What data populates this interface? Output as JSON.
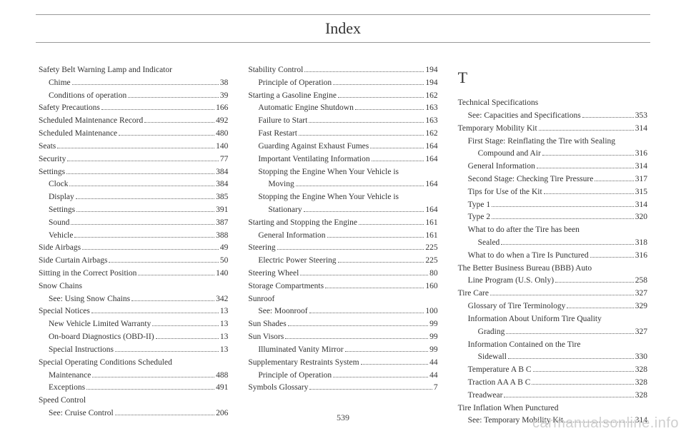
{
  "title": "Index",
  "pageNumber": "539",
  "watermark": "carmanualsonline.info",
  "sectionLetter": "T",
  "col1": [
    {
      "t": "main",
      "label": "Safety Belt Warning Lamp and Indicator",
      "page": ""
    },
    {
      "t": "sub",
      "label": "Chime",
      "page": "38"
    },
    {
      "t": "sub",
      "label": "Conditions of operation",
      "page": "39"
    },
    {
      "t": "main",
      "label": "Safety Precautions",
      "page": "166"
    },
    {
      "t": "main",
      "label": "Scheduled Maintenance Record",
      "page": "492"
    },
    {
      "t": "main",
      "label": "Scheduled Maintenance",
      "page": "480"
    },
    {
      "t": "main",
      "label": "Seats",
      "page": "140"
    },
    {
      "t": "main",
      "label": "Security",
      "page": "77"
    },
    {
      "t": "main",
      "label": "Settings",
      "page": "384"
    },
    {
      "t": "sub",
      "label": "Clock",
      "page": "384"
    },
    {
      "t": "sub",
      "label": "Display",
      "page": "385"
    },
    {
      "t": "sub",
      "label": "Settings",
      "page": "391"
    },
    {
      "t": "sub",
      "label": "Sound",
      "page": "387"
    },
    {
      "t": "sub",
      "label": "Vehicle",
      "page": "388"
    },
    {
      "t": "main",
      "label": "Side Airbags",
      "page": "49"
    },
    {
      "t": "main",
      "label": "Side Curtain Airbags",
      "page": "50"
    },
    {
      "t": "main",
      "label": "Sitting in the Correct Position",
      "page": "140"
    },
    {
      "t": "main",
      "label": "Snow Chains",
      "page": ""
    },
    {
      "t": "sub",
      "label": "See: Using Snow Chains",
      "page": "342"
    },
    {
      "t": "main",
      "label": "Special Notices",
      "page": "13"
    },
    {
      "t": "sub",
      "label": "New Vehicle Limited Warranty",
      "page": "13"
    },
    {
      "t": "sub",
      "label": "On-board Diagnostics (OBD-II)",
      "page": "13"
    },
    {
      "t": "sub",
      "label": "Special Instructions",
      "page": "13"
    },
    {
      "t": "main",
      "label": "Special Operating Conditions Scheduled",
      "page": ""
    },
    {
      "t": "sub0",
      "label": "Maintenance",
      "page": "488"
    },
    {
      "t": "sub",
      "label": "Exceptions",
      "page": "491"
    },
    {
      "t": "main",
      "label": "Speed Control",
      "page": ""
    },
    {
      "t": "sub",
      "label": "See: Cruise Control",
      "page": "206"
    }
  ],
  "col2": [
    {
      "t": "main",
      "label": "Stability Control",
      "page": "194"
    },
    {
      "t": "sub",
      "label": "Principle of Operation",
      "page": "194"
    },
    {
      "t": "main",
      "label": "Starting a Gasoline Engine",
      "page": "162"
    },
    {
      "t": "sub",
      "label": "Automatic Engine Shutdown",
      "page": "163"
    },
    {
      "t": "sub",
      "label": "Failure to Start",
      "page": "163"
    },
    {
      "t": "sub",
      "label": "Fast Restart",
      "page": "162"
    },
    {
      "t": "sub",
      "label": "Guarding Against Exhaust Fumes",
      "page": "164"
    },
    {
      "t": "sub",
      "label": "Important Ventilating Information",
      "page": "164"
    },
    {
      "t": "sub",
      "label": "Stopping the Engine When Your Vehicle is",
      "page": ""
    },
    {
      "t": "sub2",
      "label": "Moving",
      "page": "164"
    },
    {
      "t": "sub",
      "label": "Stopping the Engine When Your Vehicle is",
      "page": ""
    },
    {
      "t": "sub2",
      "label": "Stationary",
      "page": "164"
    },
    {
      "t": "main",
      "label": "Starting and Stopping the Engine",
      "page": "161"
    },
    {
      "t": "sub",
      "label": "General Information",
      "page": "161"
    },
    {
      "t": "main",
      "label": "Steering",
      "page": "225"
    },
    {
      "t": "sub",
      "label": "Electric Power Steering",
      "page": "225"
    },
    {
      "t": "main",
      "label": "Steering Wheel",
      "page": "80"
    },
    {
      "t": "main",
      "label": "Storage Compartments",
      "page": "160"
    },
    {
      "t": "main",
      "label": "Sunroof",
      "page": ""
    },
    {
      "t": "sub",
      "label": "See: Moonroof",
      "page": "100"
    },
    {
      "t": "main",
      "label": "Sun Shades",
      "page": "99"
    },
    {
      "t": "main",
      "label": "Sun Visors",
      "page": "99"
    },
    {
      "t": "sub",
      "label": "Illuminated Vanity Mirror",
      "page": "99"
    },
    {
      "t": "main",
      "label": "Supplementary Restraints System",
      "page": "44"
    },
    {
      "t": "sub",
      "label": "Principle of Operation",
      "page": "44"
    },
    {
      "t": "main",
      "label": "Symbols Glossary",
      "page": "7"
    }
  ],
  "col3": [
    {
      "t": "main",
      "label": "Technical Specifications",
      "page": ""
    },
    {
      "t": "sub",
      "label": "See: Capacities and Specifications",
      "page": "353"
    },
    {
      "t": "main",
      "label": "Temporary Mobility Kit",
      "page": "314"
    },
    {
      "t": "sub",
      "label": "First Stage: Reinflating the Tire with Sealing",
      "page": ""
    },
    {
      "t": "sub2",
      "label": "Compound and Air",
      "page": "316"
    },
    {
      "t": "sub",
      "label": "General Information",
      "page": "314"
    },
    {
      "t": "sub",
      "label": "Second Stage: Checking Tire Pressure",
      "page": "317"
    },
    {
      "t": "sub",
      "label": "Tips for Use of the Kit",
      "page": "315"
    },
    {
      "t": "sub",
      "label": "Type 1",
      "page": "314"
    },
    {
      "t": "sub",
      "label": "Type 2",
      "page": "320"
    },
    {
      "t": "sub",
      "label": "What to do after the Tire has been",
      "page": ""
    },
    {
      "t": "sub2",
      "label": "Sealed",
      "page": "318"
    },
    {
      "t": "sub",
      "label": "What to do when a Tire Is Punctured",
      "page": "316"
    },
    {
      "t": "main",
      "label": "The Better Business Bureau (BBB) Auto",
      "page": ""
    },
    {
      "t": "sub0",
      "label": "Line Program (U.S. Only)",
      "page": "258"
    },
    {
      "t": "main",
      "label": "Tire Care",
      "page": "327"
    },
    {
      "t": "sub",
      "label": "Glossary of Tire Terminology",
      "page": "329"
    },
    {
      "t": "sub",
      "label": "Information About Uniform Tire Quality",
      "page": ""
    },
    {
      "t": "sub2",
      "label": "Grading",
      "page": "327"
    },
    {
      "t": "sub",
      "label": "Information Contained on the Tire",
      "page": ""
    },
    {
      "t": "sub2",
      "label": "Sidewall",
      "page": "330"
    },
    {
      "t": "sub",
      "label": "Temperature A B C",
      "page": "328"
    },
    {
      "t": "sub",
      "label": "Traction AA A B C",
      "page": "328"
    },
    {
      "t": "sub",
      "label": "Treadwear",
      "page": "328"
    },
    {
      "t": "main",
      "label": "Tire Inflation When Punctured",
      "page": ""
    },
    {
      "t": "sub",
      "label": "See: Temporary Mobility Kit",
      "page": "314"
    }
  ]
}
